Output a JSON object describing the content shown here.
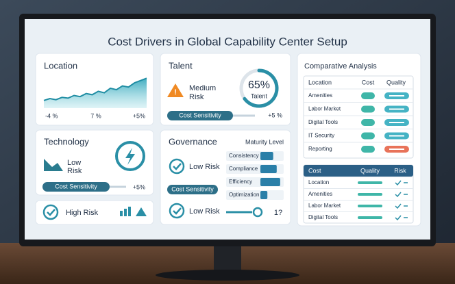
{
  "header": {
    "title": "Cost Drivers in Global Capability Center Setup"
  },
  "location": {
    "title": "Location",
    "trend": [
      20,
      25,
      22,
      28,
      26,
      33,
      30,
      38,
      35,
      44,
      40,
      52,
      48,
      58,
      55,
      66,
      72,
      78
    ],
    "axis_labels": [
      "-4 %",
      "7 %",
      "+5%"
    ]
  },
  "talent": {
    "title": "Talent",
    "risk": [
      "Medium",
      "Risk"
    ],
    "gauge": {
      "value": 65,
      "label": "65%",
      "caption": "Talent"
    },
    "sensitivity": "Cost Sensitivity",
    "change": "+5 %"
  },
  "technology": {
    "title": "Technology",
    "risk": [
      "Low",
      "Risk"
    ],
    "sensitivity": "Cost Sensitivity",
    "change": "+5%"
  },
  "governance": {
    "title": "Governance",
    "maturity_title": "Maturity Level",
    "status_1": "Low Risk",
    "sensitivity": "Cost Sensitivity",
    "status_2": "Low Risk",
    "note": "1?",
    "maturity": [
      {
        "label": "Consistency",
        "value": 55
      },
      {
        "label": "Compliance",
        "value": 70
      },
      {
        "label": "Efficiency",
        "value": 85
      },
      {
        "label": "Optimization",
        "value": 30
      }
    ]
  },
  "high_risk": {
    "label": "High Risk"
  },
  "comparative": {
    "title": "Comparative Analysis",
    "columns": [
      "Location",
      "Cost",
      "Quality"
    ],
    "rows": [
      "Amenities",
      "Labor Market",
      "Digital Tools",
      "IT Security",
      "Reporting"
    ],
    "table2": {
      "columns": [
        "Cost",
        "Quality",
        "Risk"
      ],
      "rows": [
        "Location",
        "Amenities",
        "Labor Market",
        "Digital Tools"
      ]
    }
  }
}
